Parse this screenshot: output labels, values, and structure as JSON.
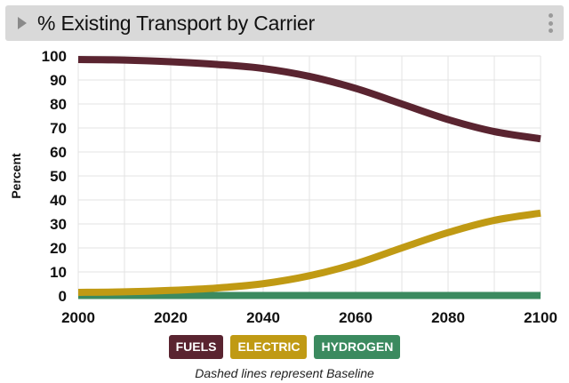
{
  "panel": {
    "title": "% Existing Transport by Carrier",
    "footnote": "Dashed lines represent Baseline"
  },
  "chart_data": {
    "type": "line",
    "title": "% Existing Transport by Carrier",
    "xlabel": "",
    "ylabel": "Percent",
    "xlim": [
      2000,
      2100
    ],
    "ylim": [
      0,
      100
    ],
    "x_ticks": [
      2000,
      2020,
      2040,
      2060,
      2080,
      2100
    ],
    "y_ticks": [
      0,
      10,
      20,
      30,
      40,
      50,
      60,
      70,
      80,
      90,
      100
    ],
    "grid": true,
    "x": [
      2000,
      2010,
      2020,
      2030,
      2040,
      2050,
      2060,
      2070,
      2080,
      2090,
      2100
    ],
    "series": [
      {
        "name": "FUELS",
        "color": "#5a2430",
        "values": [
          98.5,
          98.3,
          97.6,
          96.5,
          94.8,
          91.5,
          86.5,
          80,
          73.5,
          68.5,
          65.5
        ]
      },
      {
        "name": "ELECTRIC",
        "color": "#c09a14",
        "values": [
          1.5,
          1.7,
          2.3,
          3.3,
          5.1,
          8.4,
          13.4,
          20,
          26.4,
          31.5,
          34.5
        ]
      },
      {
        "name": "HYDROGEN",
        "color": "#3b8a5f",
        "values": [
          0.2,
          0.2,
          0.2,
          0.2,
          0.2,
          0.2,
          0.2,
          0.2,
          0.2,
          0.2,
          0.2
        ]
      }
    ],
    "legend": {
      "placement": "bottom",
      "items": [
        "FUELS",
        "ELECTRIC",
        "HYDROGEN"
      ]
    }
  }
}
